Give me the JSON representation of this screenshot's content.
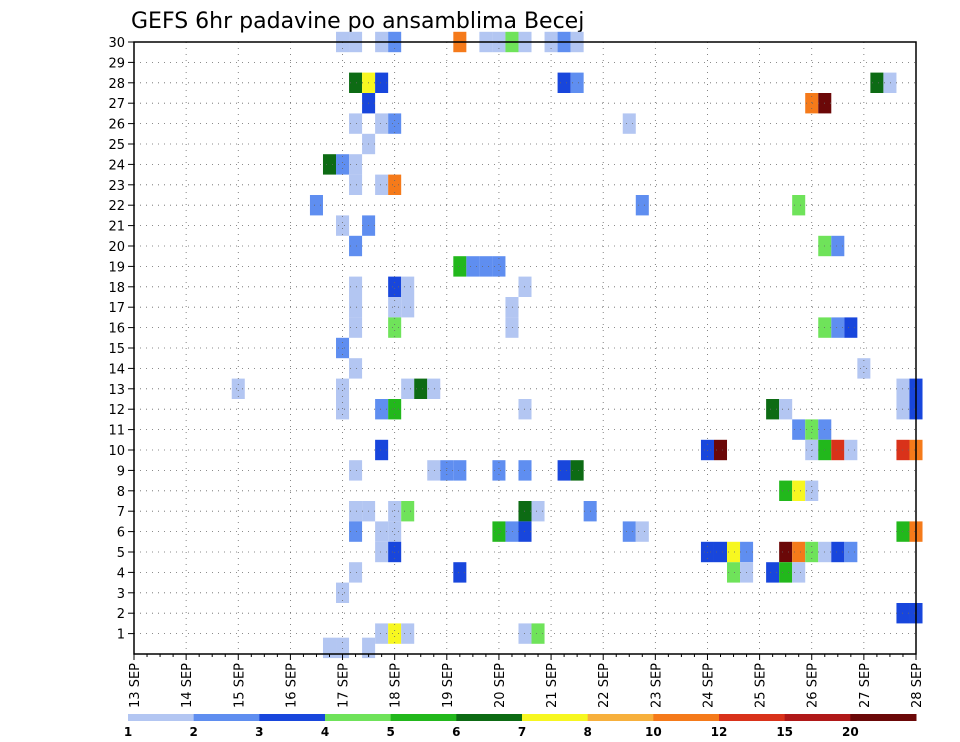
{
  "chart_data": {
    "type": "heatmap",
    "title": "GEFS 6hr padavine po ansamblima Becej",
    "xlabel": "",
    "ylabel": "",
    "x_ticks": [
      "13 SEP",
      "14 SEP",
      "15 SEP",
      "16 SEP",
      "17 SEP",
      "18 SEP",
      "19 SEP",
      "20 SEP",
      "21 SEP",
      "22 SEP",
      "23 SEP",
      "24 SEP",
      "25 SEP",
      "26 SEP",
      "27 SEP",
      "28 SEP"
    ],
    "x_range_days": [
      13,
      28
    ],
    "time_step_hours": 6,
    "y_ticks": [
      1,
      2,
      3,
      4,
      5,
      6,
      7,
      8,
      9,
      10,
      11,
      12,
      13,
      14,
      15,
      16,
      17,
      18,
      19,
      20,
      21,
      22,
      23,
      24,
      25,
      26,
      27,
      28,
      29,
      30
    ],
    "y_range": [
      0,
      30
    ],
    "grid": true,
    "colorbar": {
      "placement": "bottom",
      "labels": [
        "1",
        "2",
        "3",
        "4",
        "5",
        "6",
        "7",
        "8",
        "10",
        "12",
        "15",
        "20"
      ],
      "colors": [
        "#b3c6f2",
        "#5f8ef0",
        "#1846dc",
        "#6fe35a",
        "#22b81c",
        "#0d6b14",
        "#f7f720",
        "#f7b03c",
        "#f57a1a",
        "#d9321a",
        "#b01818",
        "#6b0808"
      ]
    },
    "cells": [
      [
        30,
        17.0,
        1
      ],
      [
        30,
        17.25,
        1
      ],
      [
        30,
        17.75,
        1
      ],
      [
        30,
        18.0,
        2
      ],
      [
        30,
        19.25,
        9
      ],
      [
        30,
        19.75,
        1
      ],
      [
        30,
        20.0,
        1
      ],
      [
        30,
        20.25,
        4
      ],
      [
        30,
        20.5,
        1
      ],
      [
        30,
        21.0,
        1
      ],
      [
        30,
        21.25,
        2
      ],
      [
        30,
        21.5,
        1
      ],
      [
        28,
        17.25,
        6
      ],
      [
        28,
        17.5,
        7
      ],
      [
        28,
        17.75,
        3
      ],
      [
        28,
        21.25,
        3
      ],
      [
        28,
        21.5,
        2
      ],
      [
        28,
        27.25,
        6
      ],
      [
        28,
        27.5,
        1
      ],
      [
        27,
        17.5,
        3
      ],
      [
        27,
        26.0,
        9
      ],
      [
        27,
        26.25,
        12
      ],
      [
        26,
        17.25,
        1
      ],
      [
        26,
        17.75,
        1
      ],
      [
        26,
        18.0,
        2
      ],
      [
        26,
        22.5,
        1
      ],
      [
        25,
        17.5,
        1
      ],
      [
        24,
        16.75,
        6
      ],
      [
        24,
        17.0,
        2
      ],
      [
        24,
        17.25,
        1
      ],
      [
        23,
        17.25,
        1
      ],
      [
        23,
        17.75,
        1
      ],
      [
        23,
        18.0,
        9
      ],
      [
        22,
        16.5,
        2
      ],
      [
        22,
        22.75,
        2
      ],
      [
        22,
        25.75,
        4
      ],
      [
        21,
        17.0,
        1
      ],
      [
        21,
        17.5,
        2
      ],
      [
        20,
        17.25,
        2
      ],
      [
        20,
        26.25,
        4
      ],
      [
        20,
        26.5,
        2
      ],
      [
        19,
        19.25,
        5
      ],
      [
        19,
        19.5,
        2
      ],
      [
        19,
        19.75,
        2
      ],
      [
        19,
        20.0,
        2
      ],
      [
        18,
        17.25,
        1
      ],
      [
        18,
        18.0,
        3
      ],
      [
        18,
        18.25,
        1
      ],
      [
        18,
        20.5,
        1
      ],
      [
        17,
        17.25,
        1
      ],
      [
        17,
        18.0,
        1
      ],
      [
        17,
        18.25,
        1
      ],
      [
        17,
        20.25,
        1
      ],
      [
        16,
        17.25,
        1
      ],
      [
        16,
        18.0,
        4
      ],
      [
        16,
        20.25,
        1
      ],
      [
        16,
        26.25,
        4
      ],
      [
        16,
        26.5,
        2
      ],
      [
        16,
        26.75,
        3
      ],
      [
        15,
        17.0,
        2
      ],
      [
        14,
        17.25,
        1
      ],
      [
        14,
        27.0,
        1
      ],
      [
        13,
        15.0,
        1
      ],
      [
        13,
        17.0,
        1
      ],
      [
        13,
        18.25,
        1
      ],
      [
        13,
        18.5,
        6
      ],
      [
        13,
        18.75,
        1
      ],
      [
        13,
        27.75,
        1
      ],
      [
        13,
        28.0,
        3
      ],
      [
        12,
        17.0,
        1
      ],
      [
        12,
        17.75,
        2
      ],
      [
        12,
        18.0,
        5
      ],
      [
        12,
        20.5,
        1
      ],
      [
        12,
        25.25,
        6
      ],
      [
        12,
        25.5,
        1
      ],
      [
        12,
        27.75,
        1
      ],
      [
        12,
        28.0,
        3
      ],
      [
        11,
        25.75,
        2
      ],
      [
        11,
        26.0,
        4
      ],
      [
        11,
        26.25,
        2
      ],
      [
        10,
        17.75,
        3
      ],
      [
        10,
        24.0,
        3
      ],
      [
        10,
        24.25,
        12
      ],
      [
        10,
        26.0,
        1
      ],
      [
        10,
        26.25,
        5
      ],
      [
        10,
        26.5,
        10
      ],
      [
        10,
        26.75,
        1
      ],
      [
        10,
        27.75,
        10
      ],
      [
        10,
        28.0,
        9
      ],
      [
        9,
        17.25,
        1
      ],
      [
        9,
        18.75,
        1
      ],
      [
        9,
        19.0,
        2
      ],
      [
        9,
        19.25,
        2
      ],
      [
        9,
        20.0,
        2
      ],
      [
        9,
        20.5,
        2
      ],
      [
        9,
        21.25,
        3
      ],
      [
        9,
        21.5,
        6
      ],
      [
        8,
        25.5,
        5
      ],
      [
        8,
        25.75,
        7
      ],
      [
        8,
        26.0,
        1
      ],
      [
        7,
        17.25,
        1
      ],
      [
        7,
        17.5,
        1
      ],
      [
        7,
        18.0,
        1
      ],
      [
        7,
        18.25,
        4
      ],
      [
        7,
        20.5,
        6
      ],
      [
        7,
        20.75,
        1
      ],
      [
        7,
        21.75,
        2
      ],
      [
        6,
        17.25,
        2
      ],
      [
        6,
        17.75,
        1
      ],
      [
        6,
        18.0,
        1
      ],
      [
        6,
        20.0,
        5
      ],
      [
        6,
        20.25,
        2
      ],
      [
        6,
        20.5,
        3
      ],
      [
        6,
        22.5,
        2
      ],
      [
        6,
        22.75,
        1
      ],
      [
        6,
        27.75,
        5
      ],
      [
        6,
        28.0,
        9
      ],
      [
        5,
        17.75,
        1
      ],
      [
        5,
        18.0,
        3
      ],
      [
        5,
        24.0,
        3
      ],
      [
        5,
        24.25,
        3
      ],
      [
        5,
        24.5,
        7
      ],
      [
        5,
        24.75,
        2
      ],
      [
        5,
        25.5,
        12
      ],
      [
        5,
        25.75,
        9
      ],
      [
        5,
        26.0,
        4
      ],
      [
        5,
        26.25,
        1
      ],
      [
        5,
        26.5,
        3
      ],
      [
        5,
        26.75,
        2
      ],
      [
        4,
        17.25,
        1
      ],
      [
        4,
        19.25,
        3
      ],
      [
        4,
        24.5,
        4
      ],
      [
        4,
        24.75,
        1
      ],
      [
        4,
        25.25,
        3
      ],
      [
        4,
        25.5,
        5
      ],
      [
        4,
        25.75,
        1
      ],
      [
        3,
        17.0,
        1
      ],
      [
        2,
        27.75,
        3
      ],
      [
        2,
        28.0,
        3
      ],
      [
        1,
        17.75,
        1
      ],
      [
        1,
        18.0,
        7
      ],
      [
        1,
        18.25,
        1
      ],
      [
        1,
        20.5,
        1
      ],
      [
        1,
        20.75,
        4
      ],
      [
        0.3,
        16.75,
        1
      ],
      [
        0.3,
        17.0,
        1
      ],
      [
        0.3,
        17.5,
        1
      ]
    ]
  }
}
